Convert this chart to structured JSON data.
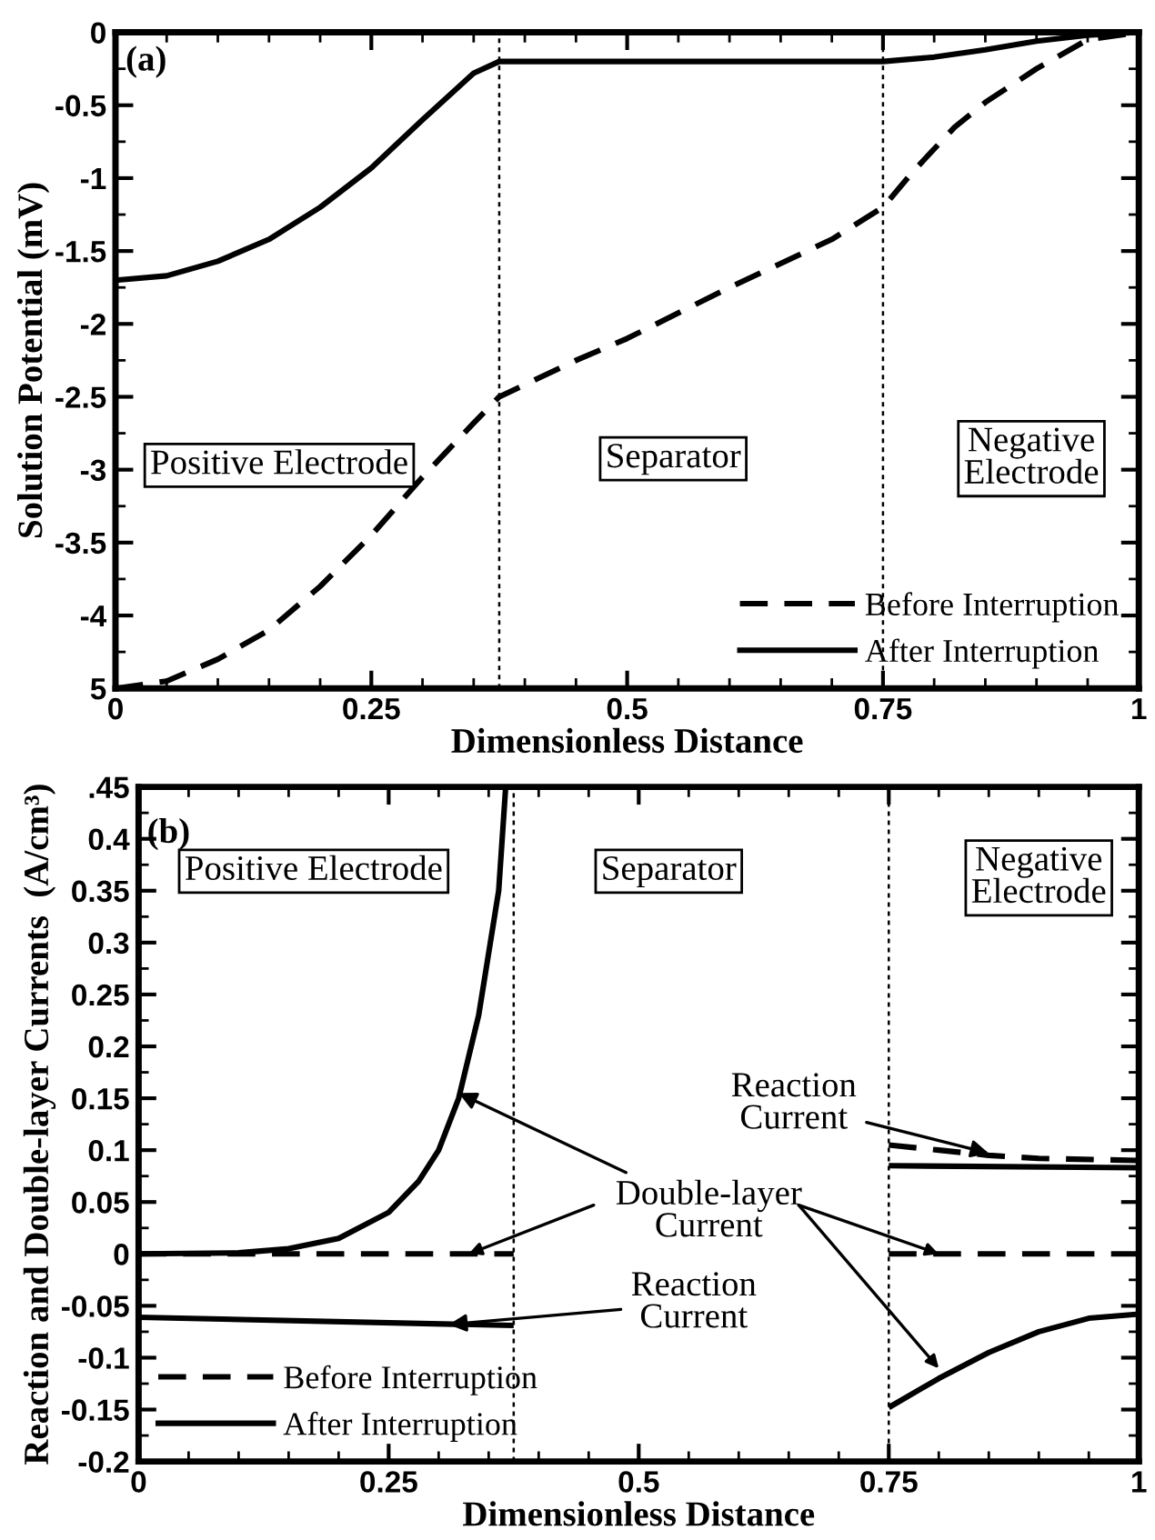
{
  "chart_data": [
    {
      "type": "line",
      "xlabel": "Dimensionless Distance",
      "ylabel": "Solution Potential (mV)",
      "xlim": [
        0,
        1
      ],
      "xticks": [
        0,
        0.25,
        0.5,
        0.75,
        1
      ],
      "ylim": [
        -4.5,
        0
      ],
      "yticks": [
        {
          "value": -4.5,
          "label": "5"
        },
        -4,
        -3.5,
        -3,
        -2.5,
        -2,
        -1.5,
        -1,
        -0.5,
        0
      ],
      "legend": "bottom right",
      "ref_lines": [
        {
          "axis": "x",
          "value": 0.375,
          "color": "#000000",
          "line_style": "dotted"
        },
        {
          "axis": "x",
          "value": 0.75,
          "color": "#000000",
          "line_style": "dotted"
        }
      ],
      "annotations": [
        "(a)",
        "Positive Electrode",
        "Separator",
        "Negative\nElectrode"
      ],
      "series": [
        {
          "name": "Before Interruption",
          "color": "#000000",
          "line_style": "dashed",
          "x": [
            0,
            0.05,
            0.1,
            0.15,
            0.2,
            0.25,
            0.3,
            0.35,
            0.375,
            0.45,
            0.5,
            0.6,
            0.7,
            0.75,
            0.78,
            0.82,
            0.85,
            0.9,
            0.95,
            1
          ],
          "values": [
            -4.5,
            -4.45,
            -4.3,
            -4.1,
            -3.8,
            -3.45,
            -3.05,
            -2.68,
            -2.5,
            -2.25,
            -2.1,
            -1.75,
            -1.42,
            -1.2,
            -0.95,
            -0.65,
            -0.48,
            -0.25,
            -0.05,
            0
          ]
        },
        {
          "name": "After Interruption",
          "color": "#000000",
          "line_style": "solid",
          "x": [
            0,
            0.05,
            0.1,
            0.15,
            0.2,
            0.25,
            0.3,
            0.35,
            0.375,
            0.5,
            0.75,
            0.8,
            0.85,
            0.9,
            0.95,
            1
          ],
          "values": [
            -1.7,
            -1.67,
            -1.57,
            -1.42,
            -1.2,
            -0.93,
            -0.6,
            -0.28,
            -0.2,
            -0.2,
            -0.2,
            -0.17,
            -0.12,
            -0.06,
            -0.02,
            0
          ]
        }
      ]
    },
    {
      "type": "line",
      "xlabel": "Dimensionless Distance",
      "ylabel": "Reaction and Double-layer Currents  (A/cm³)",
      "xlim": [
        0,
        1
      ],
      "xticks": [
        0,
        0.25,
        0.5,
        0.75,
        1
      ],
      "ylim": [
        -0.2,
        0.45
      ],
      "yticks": [
        -0.2,
        -0.15,
        -0.1,
        -0.05,
        0,
        0.05,
        0.1,
        0.15,
        0.2,
        0.25,
        0.3,
        0.35,
        0.4,
        {
          "value": 0.45,
          "label": ".45"
        }
      ],
      "legend": "bottom left",
      "ref_lines": [
        {
          "axis": "x",
          "value": 0.375,
          "color": "#000000",
          "line_style": "dotted"
        },
        {
          "axis": "x",
          "value": 0.75,
          "color": "#000000",
          "line_style": "dotted"
        }
      ],
      "annotations": [
        "(b)",
        "Positive Electrode",
        "Separator",
        "Negative\nElectrode",
        {
          "text": "Reaction\nCurrent",
          "x": 0.85,
          "y": 0.097
        },
        {
          "text": "Double-layer\nCurrent",
          "x": 0.32,
          "y": 0.155
        },
        {
          "text": "Reaction\nCurrent",
          "x": 0.31,
          "y": -0.068
        }
      ],
      "series": [
        {
          "name": "Before Interruption",
          "color": "#000000",
          "line_style": "dashed",
          "x": [
            0,
            0.375,
            null,
            0.75,
            1
          ],
          "values": [
            0,
            0,
            null,
            0,
            0
          ]
        },
        {
          "color": "#000000",
          "line_style": "dashed",
          "x": [
            0.75,
            0.8,
            0.85,
            0.9,
            1
          ],
          "values": [
            0.105,
            0.1,
            0.095,
            0.092,
            0.09
          ]
        },
        {
          "name": "After Interruption",
          "color": "#000000",
          "line_style": "solid",
          "x": [
            0,
            0.1,
            0.15,
            0.2,
            0.25,
            0.28,
            0.3,
            0.32,
            0.34,
            0.36,
            0.367
          ],
          "values": [
            0,
            0.001,
            0.005,
            0.015,
            0.04,
            0.07,
            0.1,
            0.15,
            0.23,
            0.35,
            0.45
          ]
        },
        {
          "color": "#000000",
          "line_style": "solid",
          "x": [
            0,
            0.375
          ],
          "values": [
            -0.061,
            -0.069
          ]
        },
        {
          "color": "#000000",
          "line_style": "solid",
          "x": [
            0.75,
            1
          ],
          "values": [
            0.085,
            0.083
          ]
        },
        {
          "color": "#000000",
          "line_style": "solid",
          "x": [
            0.75,
            0.8,
            0.85,
            0.9,
            0.95,
            1
          ],
          "values": [
            -0.148,
            -0.12,
            -0.095,
            -0.075,
            -0.062,
            -0.058
          ]
        }
      ]
    }
  ]
}
